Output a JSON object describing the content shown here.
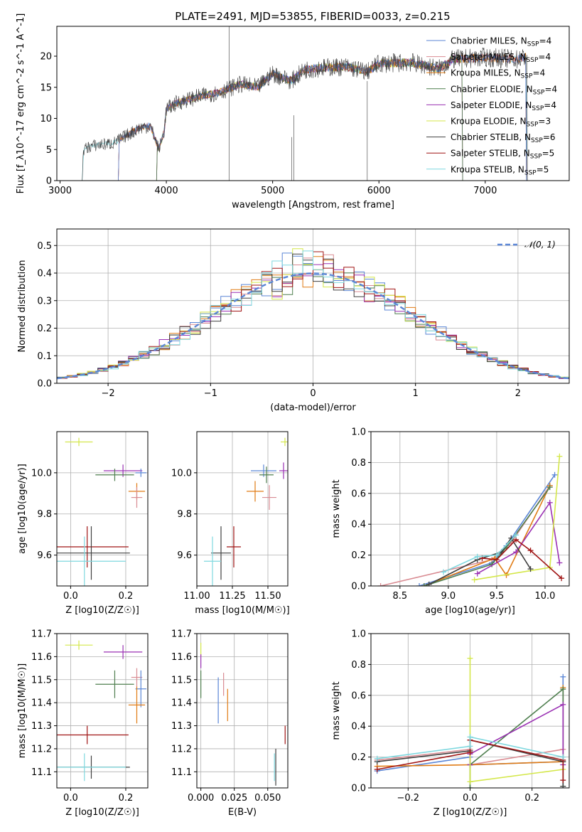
{
  "title": "PLATE=2491, MJD=53855, FIBERID=0033, z=0.215",
  "colors": {
    "Chabrier MILES": "#5b86d6",
    "Salpeter MILES": "#d98b92",
    "Kroupa MILES": "#e07b14",
    "Chabrier ELODIE": "#4f7f4f",
    "Salpeter ELODIE": "#9a30b3",
    "Kroupa ELODIE": "#d4e74a",
    "Chabrier STELIB": "#404040",
    "Salpeter STELIB": "#a01414",
    "Kroupa STELIB": "#7fd8df"
  },
  "chart_data": [
    {
      "id": "spectrum",
      "type": "line",
      "xlabel": "wavelength [Angstrom, rest frame]",
      "ylabel": "Flux [f_λ10^-17 erg cm^-2 s^-1 A^-1]",
      "xlim": [
        2970,
        7790
      ],
      "ylim": [
        0,
        24.8
      ],
      "xticks": [
        "3000",
        "4000",
        "5000",
        "6000",
        "7000"
      ],
      "yticks": [
        "0",
        "5",
        "10",
        "15",
        "20"
      ],
      "legend_position": "right",
      "legend": [
        {
          "name": "Chabrier MILES",
          "label": "Chabrier MILES, N_SSP=4"
        },
        {
          "name": "Salpeter MILES",
          "label": "Salpeter MILES, N_SSP=4"
        },
        {
          "name": "Kroupa MILES",
          "label": "Kroupa MILES, N_SSP=4"
        },
        {
          "name": "Chabrier ELODIE",
          "label": "Chabrier ELODIE, N_SSP=4"
        },
        {
          "name": "Salpeter ELODIE",
          "label": "Salpeter ELODIE, N_SSP=4"
        },
        {
          "name": "Kroupa ELODIE",
          "label": "Kroupa ELODIE, N_SSP=3"
        },
        {
          "name": "Chabrier STELIB",
          "label": "Chabrier STELIB, N_SSP=6"
        },
        {
          "name": "Salpeter STELIB",
          "label": "Salpeter STELIB, N_SSP=5"
        },
        {
          "name": "Kroupa STELIB",
          "label": "Kroupa STELIB, N_SSP=5"
        }
      ],
      "continuum": [
        [
          3210,
          0
        ],
        [
          3220,
          5.0
        ],
        [
          3300,
          5.6
        ],
        [
          3400,
          5.8
        ],
        [
          3500,
          6.0
        ],
        [
          3550,
          6.5
        ],
        [
          3650,
          7.5
        ],
        [
          3750,
          8.5
        ],
        [
          3850,
          8.8
        ],
        [
          3930,
          5.0
        ],
        [
          3980,
          8.0
        ],
        [
          4000,
          11.5
        ],
        [
          4100,
          12.5
        ],
        [
          4300,
          13.5
        ],
        [
          4500,
          14.2
        ],
        [
          4700,
          15.5
        ],
        [
          4861,
          15.0
        ],
        [
          5000,
          17.2
        ],
        [
          5175,
          16.0
        ],
        [
          5300,
          17.8
        ],
        [
          5500,
          18.2
        ],
        [
          5700,
          18.3
        ],
        [
          5890,
          17.5
        ],
        [
          6000,
          18.8
        ],
        [
          6300,
          19.0
        ],
        [
          6563,
          18.0
        ],
        [
          6700,
          19.5
        ],
        [
          7000,
          19.8
        ],
        [
          7300,
          19.5
        ],
        [
          7400,
          20.0
        ]
      ],
      "drops": [
        [
          4590,
          24.8
        ],
        [
          5180,
          7.0
        ],
        [
          5890,
          16.0
        ],
        [
          5200,
          10.5
        ]
      ],
      "model_ranges": {
        "Chabrier MILES": [
          3540,
          7400
        ],
        "Salpeter MILES": [
          3540,
          7400
        ],
        "Kroupa MILES": [
          3540,
          7400
        ],
        "Chabrier ELODIE": [
          3900,
          6800
        ],
        "Salpeter ELODIE": [
          3900,
          6800
        ],
        "Kroupa ELODIE": [
          3900,
          6800
        ],
        "Chabrier STELIB": [
          3200,
          7400
        ],
        "Salpeter STELIB": [
          3540,
          7400
        ],
        "Kroupa STELIB": [
          3200,
          7400
        ]
      }
    },
    {
      "id": "residuals",
      "type": "histogram",
      "xlabel": "(data-model)/error",
      "ylabel": "Normed distribution",
      "xlim": [
        -2.5,
        2.5
      ],
      "ylim": [
        0,
        0.56
      ],
      "xticks": [
        "−2",
        "−1",
        "0",
        "1",
        "2"
      ],
      "yticks": [
        "0.0",
        "0.1",
        "0.2",
        "0.3",
        "0.4",
        "0.5"
      ],
      "legend": [
        "𝒩(0, 1)"
      ],
      "legend_position": "top-right",
      "bin_width": 0.1
    },
    {
      "id": "age_vs_Z",
      "type": "errorbar",
      "xlabel": "Z [log10(Z/Z☉)]",
      "ylabel": "age  [log10(age/yr)]",
      "xlim": [
        -0.05,
        0.28
      ],
      "ylim": [
        9.45,
        10.2
      ],
      "xticks": [
        "0.0",
        "0.2"
      ],
      "yticks": [
        "9.6",
        "9.8",
        "10.0"
      ],
      "points": [
        {
          "name": "Kroupa ELODIE",
          "x": 0.03,
          "y": 10.15,
          "xerr": 0.05,
          "yerr": 0.02
        },
        {
          "name": "Salpeter ELODIE",
          "x": 0.19,
          "y": 10.01,
          "xerr": 0.07,
          "yerr": 0.03
        },
        {
          "name": "Chabrier MILES",
          "x": 0.255,
          "y": 10.0,
          "xerr": 0.02,
          "yerr": 0.02
        },
        {
          "name": "Chabrier ELODIE",
          "x": 0.16,
          "y": 9.99,
          "xerr": 0.07,
          "yerr": 0.03
        },
        {
          "name": "Kroupa MILES",
          "x": 0.24,
          "y": 9.91,
          "xerr": 0.03,
          "yerr": 0.04
        },
        {
          "name": "Salpeter MILES",
          "x": 0.24,
          "y": 9.88,
          "xerr": 0.02,
          "yerr": 0.05
        },
        {
          "name": "Salpeter STELIB",
          "x": 0.06,
          "y": 9.64,
          "xerr": 0.15,
          "yerr": 0.1
        },
        {
          "name": "Chabrier STELIB",
          "x": 0.075,
          "y": 9.61,
          "xerr": 0.14,
          "yerr": 0.13
        },
        {
          "name": "Kroupa STELIB",
          "x": 0.05,
          "y": 9.57,
          "xerr": 0.15,
          "yerr": 0.12
        }
      ]
    },
    {
      "id": "age_vs_mass",
      "type": "errorbar",
      "xlabel": "mass [log10(M/M☉)]",
      "ylabel": "",
      "xlim": [
        11.0,
        11.64
      ],
      "ylim": [
        9.45,
        10.2
      ],
      "xticks": [
        "11.00",
        "11.25",
        "11.50"
      ],
      "yticks": [
        "9.6",
        "9.8",
        "10.0"
      ],
      "points": [
        {
          "name": "Kroupa ELODIE",
          "x": 11.62,
          "y": 10.15,
          "xerr": 0.03,
          "yerr": 0.02
        },
        {
          "name": "Salpeter ELODIE",
          "x": 11.61,
          "y": 10.01,
          "xerr": 0.03,
          "yerr": 0.04
        },
        {
          "name": "Chabrier MILES",
          "x": 11.47,
          "y": 10.01,
          "xerr": 0.09,
          "yerr": 0.03
        },
        {
          "name": "Chabrier ELODIE",
          "x": 11.49,
          "y": 9.99,
          "xerr": 0.05,
          "yerr": 0.04
        },
        {
          "name": "Kroupa MILES",
          "x": 11.41,
          "y": 9.91,
          "xerr": 0.06,
          "yerr": 0.05
        },
        {
          "name": "Salpeter MILES",
          "x": 11.51,
          "y": 9.88,
          "xerr": 0.05,
          "yerr": 0.06
        },
        {
          "name": "Salpeter STELIB",
          "x": 11.26,
          "y": 9.64,
          "xerr": 0.05,
          "yerr": 0.1
        },
        {
          "name": "Chabrier STELIB",
          "x": 11.17,
          "y": 9.61,
          "xerr": 0.07,
          "yerr": 0.13
        },
        {
          "name": "Kroupa STELIB",
          "x": 11.11,
          "y": 9.57,
          "xerr": 0.06,
          "yerr": 0.12
        }
      ]
    },
    {
      "id": "weight_vs_age",
      "type": "line",
      "xlabel": "age  [log10(age/yr)]",
      "ylabel": "mass weight",
      "xlim": [
        8.2,
        10.25
      ],
      "ylim": [
        0,
        1.0
      ],
      "xticks": [
        "8.5",
        "9.0",
        "9.5",
        "10.0"
      ],
      "yticks": [
        "0.0",
        "0.2",
        "0.4",
        "0.6",
        "0.8",
        "1.0"
      ],
      "series": [
        {
          "name": "Chabrier MILES",
          "x": [
            8.7,
            9.45,
            9.6,
            10.1
          ],
          "y": [
            0.0,
            0.15,
            0.26,
            0.72
          ]
        },
        {
          "name": "Salpeter MILES",
          "x": [
            8.3,
            9.45,
            9.65,
            10.05
          ],
          "y": [
            0.0,
            0.17,
            0.28,
            0.65
          ]
        },
        {
          "name": "Kroupa MILES",
          "x": [
            8.75,
            9.48,
            9.6,
            10.05
          ],
          "y": [
            0.0,
            0.18,
            0.07,
            0.65
          ]
        },
        {
          "name": "Chabrier ELODIE",
          "x": [
            8.75,
            9.45,
            9.6,
            10.05
          ],
          "y": [
            0.0,
            0.14,
            0.25,
            0.64
          ]
        },
        {
          "name": "Salpeter ELODIE",
          "x": [
            9.3,
            9.7,
            10.05,
            10.15
          ],
          "y": [
            0.08,
            0.22,
            0.54,
            0.15
          ]
        },
        {
          "name": "Kroupa ELODIE",
          "x": [
            9.27,
            10.05,
            10.15
          ],
          "y": [
            0.04,
            0.12,
            0.84
          ]
        },
        {
          "name": "Chabrier STELIB",
          "x": [
            8.8,
            9.3,
            9.55,
            9.65,
            9.85
          ],
          "y": [
            0.01,
            0.17,
            0.22,
            0.31,
            0.11
          ]
        },
        {
          "name": "Salpeter STELIB",
          "x": [
            9.35,
            9.5,
            9.7,
            9.85,
            10.17
          ],
          "y": [
            0.18,
            0.17,
            0.3,
            0.23,
            0.05
          ]
        },
        {
          "name": "Kroupa STELIB",
          "x": [
            8.95,
            9.3,
            9.5,
            9.7
          ],
          "y": [
            0.09,
            0.19,
            0.2,
            0.33
          ]
        }
      ]
    },
    {
      "id": "mass_vs_Z",
      "type": "errorbar",
      "xlabel": "Z [log10(Z/Z☉)]",
      "ylabel": "mass [log10(M/M☉)]",
      "xlim": [
        -0.05,
        0.28
      ],
      "ylim": [
        11.03,
        11.7
      ],
      "xticks": [
        "0.0",
        "0.2"
      ],
      "yticks": [
        "11.1",
        "11.2",
        "11.3",
        "11.4",
        "11.5",
        "11.6",
        "11.7"
      ],
      "points": [
        {
          "name": "Kroupa ELODIE",
          "x": 0.03,
          "y": 11.65,
          "xerr": 0.05,
          "yerr": 0.02
        },
        {
          "name": "Salpeter ELODIE",
          "x": 0.19,
          "y": 11.62,
          "xerr": 0.07,
          "yerr": 0.03
        },
        {
          "name": "Salpeter MILES",
          "x": 0.24,
          "y": 11.51,
          "xerr": 0.02,
          "yerr": 0.04
        },
        {
          "name": "Chabrier ELODIE",
          "x": 0.16,
          "y": 11.48,
          "xerr": 0.07,
          "yerr": 0.06
        },
        {
          "name": "Chabrier MILES",
          "x": 0.255,
          "y": 11.46,
          "xerr": 0.02,
          "yerr": 0.08
        },
        {
          "name": "Kroupa MILES",
          "x": 0.24,
          "y": 11.39,
          "xerr": 0.03,
          "yerr": 0.08
        },
        {
          "name": "Salpeter STELIB",
          "x": 0.06,
          "y": 11.26,
          "xerr": 0.15,
          "yerr": 0.04
        },
        {
          "name": "Chabrier STELIB",
          "x": 0.075,
          "y": 11.12,
          "xerr": 0.14,
          "yerr": 0.05
        },
        {
          "name": "Kroupa STELIB",
          "x": 0.05,
          "y": 11.12,
          "xerr": 0.15,
          "yerr": 0.06
        }
      ]
    },
    {
      "id": "mass_vs_ebv",
      "type": "errorbar",
      "xlabel": "E(B-V)",
      "ylabel": "",
      "xlim": [
        -0.003,
        0.065
      ],
      "ylim": [
        11.03,
        11.7
      ],
      "xticks": [
        "0.000",
        "0.025",
        "0.050"
      ],
      "yticks": [
        "11.1",
        "11.2",
        "11.3",
        "11.4",
        "11.5",
        "11.6",
        "11.7"
      ],
      "points": [
        {
          "name": "Kroupa ELODIE",
          "x": 0.0,
          "y": 11.63,
          "xerr": 0,
          "yerr": 0.03
        },
        {
          "name": "Salpeter ELODIE",
          "x": 0.0,
          "y": 11.58,
          "xerr": 0,
          "yerr": 0.03
        },
        {
          "name": "Chabrier ELODIE",
          "x": 0.0,
          "y": 11.48,
          "xerr": 0,
          "yerr": 0.06
        },
        {
          "name": "Salpeter MILES",
          "x": 0.017,
          "y": 11.48,
          "xerr": 0,
          "yerr": 0.05
        },
        {
          "name": "Chabrier MILES",
          "x": 0.013,
          "y": 11.41,
          "xerr": 0,
          "yerr": 0.1
        },
        {
          "name": "Kroupa MILES",
          "x": 0.02,
          "y": 11.39,
          "xerr": 0,
          "yerr": 0.07
        },
        {
          "name": "Salpeter STELIB",
          "x": 0.063,
          "y": 11.26,
          "xerr": 0,
          "yerr": 0.04
        },
        {
          "name": "Chabrier STELIB",
          "x": 0.056,
          "y": 11.12,
          "xerr": 0,
          "yerr": 0.08
        },
        {
          "name": "Kroupa STELIB",
          "x": 0.055,
          "y": 11.12,
          "xerr": 0,
          "yerr": 0.06
        }
      ]
    },
    {
      "id": "weight_vs_Z",
      "type": "line",
      "xlabel": "Z [log10(Z/Z☉)]",
      "ylabel": "mass weight",
      "xlim": [
        -0.32,
        0.32
      ],
      "ylim": [
        0,
        1.0
      ],
      "xticks": [
        "−0.2",
        "0.0",
        "0.2"
      ],
      "yticks": [
        "0.0",
        "0.2",
        "0.4",
        "0.6",
        "0.8",
        "1.0"
      ],
      "series": [
        {
          "name": "Chabrier MILES",
          "x": [
            -0.3,
            0.0,
            0.0,
            0.3,
            0.3
          ],
          "y": [
            0.11,
            0.2,
            0.15,
            0.17,
            0.72
          ]
        },
        {
          "name": "Salpeter MILES",
          "x": [
            -0.3,
            0.0,
            0.0,
            0.3
          ],
          "y": [
            0.18,
            0.25,
            0.15,
            0.25
          ]
        },
        {
          "name": "Kroupa MILES",
          "x": [
            -0.3,
            0.0,
            0.3,
            0.3
          ],
          "y": [
            0.14,
            0.15,
            0.17,
            0.65
          ]
        },
        {
          "name": "Chabrier ELODIE",
          "x": [
            0.0,
            0.0,
            0.3,
            0.3
          ],
          "y": [
            0.0,
            0.15,
            0.64,
            0.01
          ]
        },
        {
          "name": "Salpeter ELODIE",
          "x": [
            0.0,
            0.0,
            0.3,
            0.3
          ],
          "y": [
            0.15,
            0.22,
            0.54,
            0.15
          ]
        },
        {
          "name": "Kroupa ELODIE",
          "x": [
            0.0,
            0.0,
            0.3
          ],
          "y": [
            0.84,
            0.04,
            0.12
          ]
        },
        {
          "name": "Chabrier STELIB",
          "x": [
            -0.3,
            0.0,
            0.0,
            0.3,
            0.3
          ],
          "y": [
            0.17,
            0.24,
            0.31,
            0.17,
            0.01
          ]
        },
        {
          "name": "Salpeter STELIB",
          "x": [
            -0.3,
            0.0,
            0.0,
            0.3,
            0.3
          ],
          "y": [
            0.12,
            0.23,
            0.31,
            0.18,
            0.05
          ]
        },
        {
          "name": "Kroupa STELIB",
          "x": [
            -0.3,
            0.0,
            0.0,
            0.3
          ],
          "y": [
            0.19,
            0.27,
            0.33,
            0.2
          ]
        }
      ]
    }
  ]
}
